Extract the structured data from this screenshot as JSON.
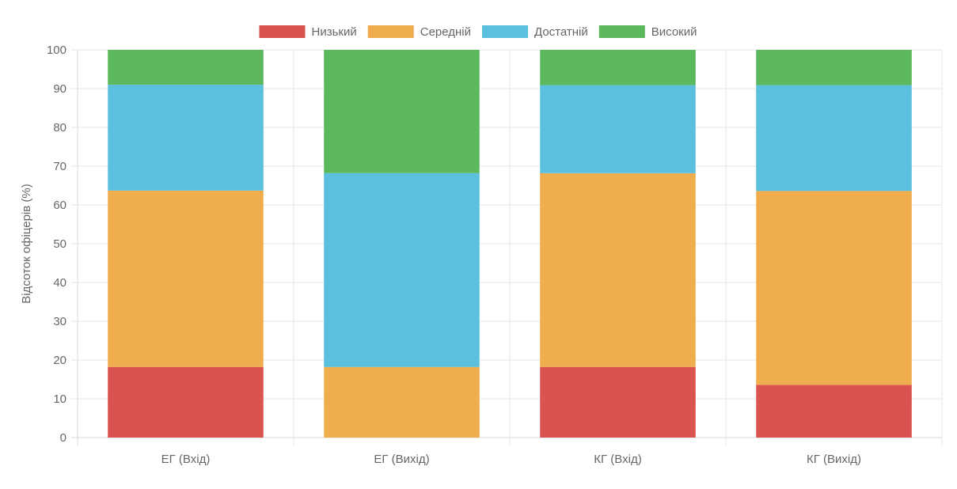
{
  "chart_data": {
    "type": "bar",
    "stacked": true,
    "title": "",
    "xlabel": "",
    "ylabel": "Відсоток офіцерів (%)",
    "ylim": [
      0,
      100
    ],
    "yticks": [
      0,
      10,
      20,
      30,
      40,
      50,
      60,
      70,
      80,
      90,
      100
    ],
    "grid": true,
    "legend_position": "top",
    "categories": [
      "ЕГ (Вхід)",
      "ЕГ (Вихід)",
      "КГ (Вхід)",
      "КГ (Вихід)"
    ],
    "series": [
      {
        "name": "Низький",
        "color": "#d9534f",
        "values": [
          18.2,
          0,
          18.2,
          13.6
        ]
      },
      {
        "name": "Середній",
        "color": "#f0ad4e",
        "values": [
          45.5,
          18.2,
          50.0,
          50.0
        ]
      },
      {
        "name": "Достатній",
        "color": "#5bc0de",
        "values": [
          27.3,
          50.0,
          22.7,
          27.3
        ]
      },
      {
        "name": "Високий",
        "color": "#5cb85c",
        "values": [
          9.0,
          31.8,
          9.1,
          9.1
        ]
      }
    ]
  }
}
